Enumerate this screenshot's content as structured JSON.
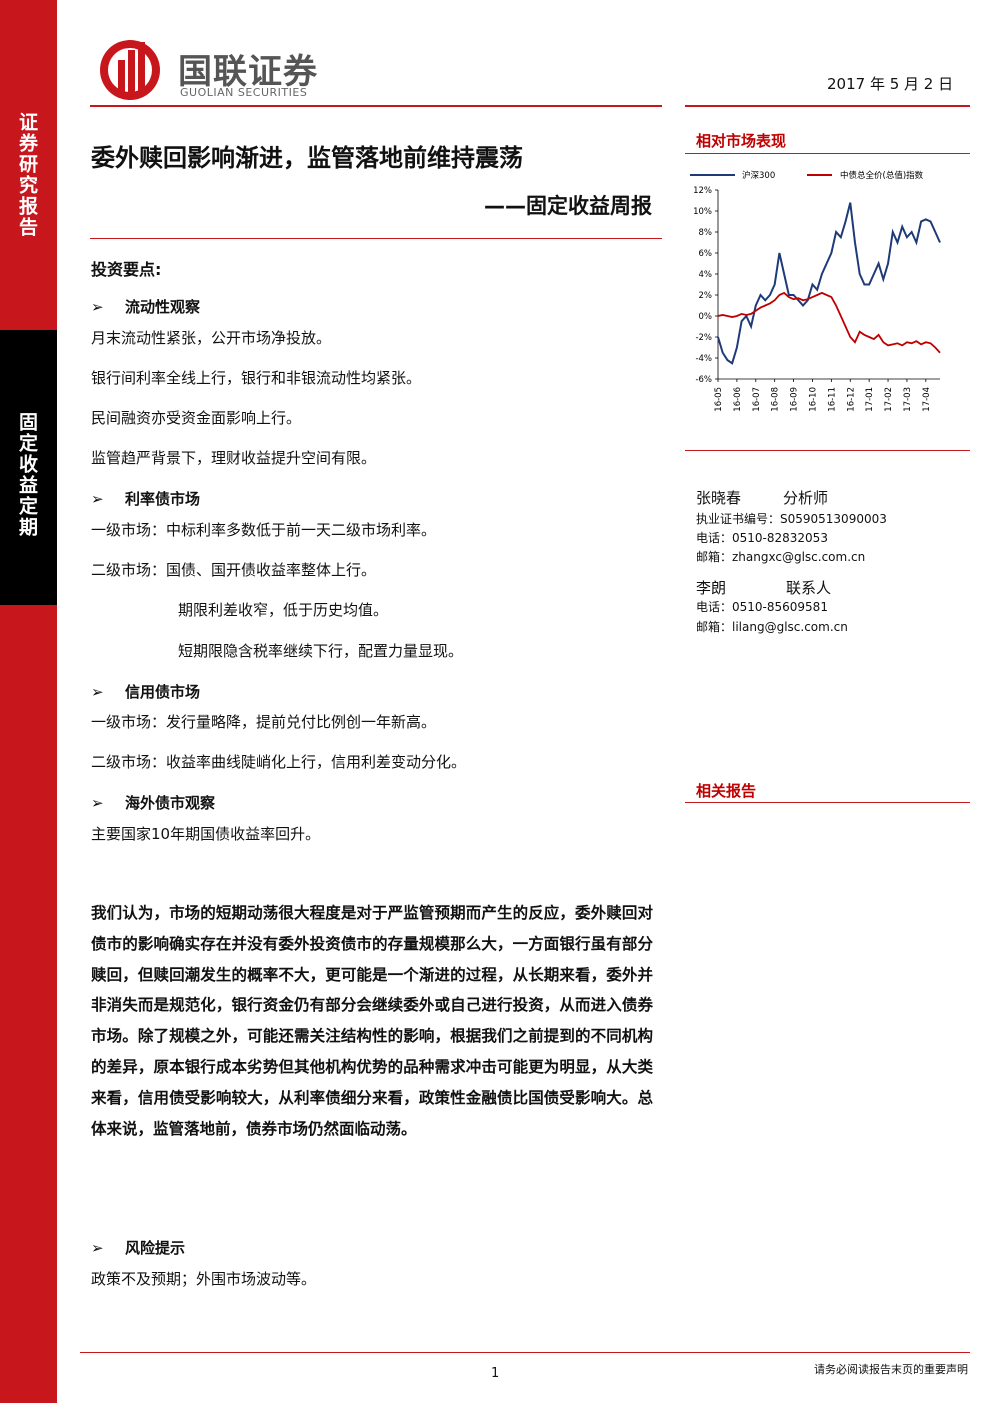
{
  "header": {
    "logo_cn": "国联证券",
    "logo_en": "GUOLIAN SECURITIES",
    "date": "2017 年 5 月 2 日"
  },
  "sidebar": {
    "top": "证券研究报告",
    "middle": "固定收益定期"
  },
  "title": "委外赎回影响渐进，监管落地前维持震荡",
  "subtitle": "——固定收益周报",
  "key_points": {
    "heading": "投资要点:",
    "sections": [
      {
        "heading": "流动性观察",
        "paragraphs": [
          "月末流动性紧张，公开市场净投放。",
          "银行间利率全线上行，银行和非银流动性均紧张。",
          "民间融资亦受资金面影响上行。",
          "监管趋严背景下，理财收益提升空间有限。"
        ]
      },
      {
        "heading": "利率债市场",
        "paragraphs": [
          "一级市场：中标利率多数低于前一天二级市场利率。",
          "二级市场：国债、国开债收益率整体上行。",
          "期限利差收窄，低于历史均值。",
          "短期限隐含税率继续下行，配置力量显现。"
        ]
      },
      {
        "heading": "信用债市场",
        "paragraphs": [
          "一级市场：发行量略降，提前兑付比例创一年新高。",
          "二级市场：收益率曲线陡峭化上行，信用利差变动分化。"
        ]
      },
      {
        "heading": "海外债市观察",
        "paragraphs": [
          "主要国家10年期国债收益率回升。"
        ]
      }
    ]
  },
  "opinion": "我们认为，市场的短期动荡很大程度是对于严监管预期而产生的反应，委外赎回对债市的影响确实存在并没有委外投资债市的存量规模那么大，一方面银行虽有部分赎回，但赎回潮发生的概率不大，更可能是一个渐进的过程，从长期来看，委外并非消失而是规范化，银行资金仍有部分会继续委外或自己进行投资，从而进入债券市场。除了规模之外，可能还需关注结构性的影响，根据我们之前提到的不同机构的差异，原本银行成本劣势但其他机构优势的品种需求冲击可能更为明显，从大类来看，信用债受影响较大，从利率债细分来看，政策性金融债比国债受影响大。总体来说，监管落地前，债券市场仍然面临动荡。",
  "risk": {
    "heading": "风险提示",
    "text": "政策不及预期；外围市场波动等。"
  },
  "chart_data": {
    "type": "line",
    "title": "相对市场表现",
    "categories": [
      "16-05",
      null,
      null,
      null,
      "16-06",
      null,
      null,
      null,
      "16-07",
      null,
      null,
      null,
      "16-08",
      null,
      null,
      null,
      "16-09",
      null,
      null,
      null,
      "16-10",
      null,
      null,
      null,
      "16-11",
      null,
      null,
      null,
      "16-12",
      null,
      null,
      null,
      "17-01",
      null,
      null,
      null,
      "17-02",
      null,
      null,
      null,
      "17-03",
      null,
      null,
      null,
      "17-04",
      null,
      null,
      null
    ],
    "series": [
      {
        "name": "沪深300",
        "color": "#1f3a78",
        "values": [
          -2,
          -3.5,
          -4.2,
          -4.5,
          -3,
          -0.5,
          0,
          -1,
          1,
          2,
          1.5,
          2,
          3,
          6,
          4,
          2,
          2,
          1.5,
          1,
          1.5,
          3,
          2.5,
          4,
          5,
          6,
          8,
          7.5,
          9,
          10.8,
          7,
          4,
          3,
          3,
          4,
          5,
          3.5,
          5,
          8,
          7,
          8.5,
          7.5,
          8,
          7,
          9,
          9.2,
          9,
          8,
          7
        ]
      },
      {
        "name": "中债总全价(总值)指数",
        "color": "#c00000",
        "values": [
          0,
          0.1,
          0,
          -0.1,
          0,
          0.2,
          0.1,
          0.2,
          0.5,
          0.8,
          1,
          1.2,
          1.5,
          2,
          2.2,
          1.8,
          1.6,
          1.7,
          1.5,
          1.6,
          1.8,
          2,
          2.2,
          2,
          1.8,
          1,
          0,
          -1,
          -2,
          -2.5,
          -1.5,
          -1.8,
          -2,
          -2.2,
          -1.8,
          -2.5,
          -2.8,
          -2.7,
          -2.6,
          -2.8,
          -2.5,
          -2.6,
          -2.4,
          -2.7,
          -2.5,
          -2.6,
          -3,
          -3.5
        ]
      }
    ],
    "ylim": [
      -6,
      12
    ],
    "yticks": [
      {
        "value": -6,
        "label": "-6%"
      },
      {
        "value": -4,
        "label": "-4%"
      },
      {
        "value": -2,
        "label": "-2%"
      },
      {
        "value": 0,
        "label": "0%"
      },
      {
        "value": 2,
        "label": "2%"
      },
      {
        "value": 4,
        "label": "4%"
      },
      {
        "value": 6,
        "label": "6%"
      },
      {
        "value": 8,
        "label": "8%"
      },
      {
        "value": 10,
        "label": "10%"
      },
      {
        "value": 12,
        "label": "12%"
      }
    ],
    "grid": false
  },
  "analysts": [
    {
      "name": "张晓春",
      "role": "分析师",
      "license": "执业证书编号：S0590513090003",
      "phone": "电话：0510-82832053",
      "email": "邮箱：zhangxc@glsc.com.cn"
    },
    {
      "name": "李朗",
      "role": "联系人",
      "phone": "电话：0510-85609581",
      "email": "邮箱：lilang@glsc.com.cn"
    }
  ],
  "related_reports": {
    "heading": "相关报告"
  },
  "footer": {
    "page": "1",
    "note": "请务必阅读报告末页的重要声明"
  }
}
